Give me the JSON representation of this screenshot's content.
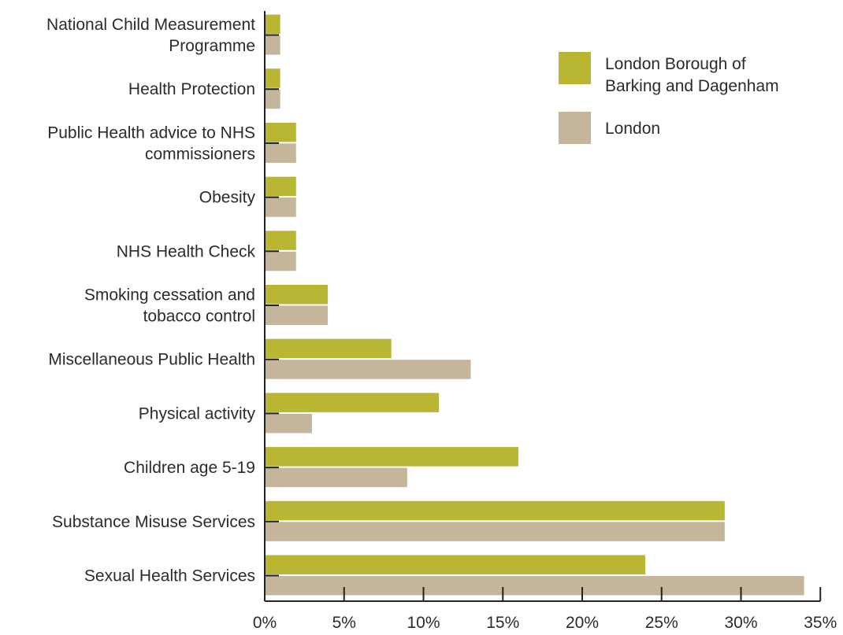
{
  "chart_data": {
    "type": "bar",
    "orientation": "horizontal",
    "categories": [
      [
        "National Child Measurement",
        "Programme"
      ],
      [
        "Health Protection"
      ],
      [
        "Public Health advice to NHS",
        "commissioners"
      ],
      [
        "Obesity"
      ],
      [
        "NHS Health Check"
      ],
      [
        "Smoking cessation and",
        "tobacco control"
      ],
      [
        "Miscellaneous Public Health"
      ],
      [
        "Physical activity"
      ],
      [
        "Children age 5-19"
      ],
      [
        "Substance Misuse Services"
      ],
      [
        "Sexual Health Services"
      ]
    ],
    "series": [
      {
        "name": [
          "London Borough of",
          "Barking and Dagenham"
        ],
        "color": "#b8b632",
        "values": [
          1,
          1,
          2,
          2,
          2,
          4,
          8,
          11,
          16,
          29,
          24
        ]
      },
      {
        "name": [
          "London"
        ],
        "color": "#c4b59b",
        "values": [
          1,
          1,
          2,
          2,
          2,
          4,
          13,
          3,
          9,
          29,
          34
        ]
      }
    ],
    "xticks": [
      "0%",
      "5%",
      "10%",
      "15%",
      "20%",
      "25%",
      "30%",
      "35%"
    ],
    "xlim": [
      0,
      35
    ],
    "grid": false,
    "legend_position": "top-right"
  }
}
